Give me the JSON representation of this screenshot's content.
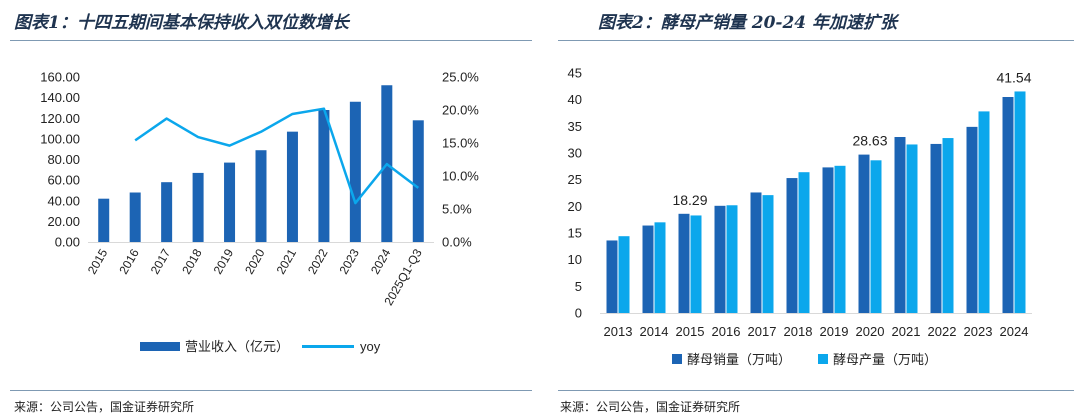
{
  "titles": {
    "left": "图表1：十四五期间基本保持收入双位数增长",
    "right": "图表2：酵母产销量 20-24 年加速扩张"
  },
  "sources": {
    "left": "来源：公司公告，国金证券研究所",
    "right": "来源：公司公告，国金证券研究所"
  },
  "colors": {
    "dark_blue": "#1c64b4",
    "light_blue": "#0ba7ec",
    "title": "#1f3450",
    "rule": "#7f9ab3"
  },
  "chart_data": [
    {
      "type": "bar",
      "categories": [
        "2015",
        "2016",
        "2017",
        "2018",
        "2019",
        "2020",
        "2021",
        "2022",
        "2023",
        "2024",
        "2025Q1-Q3"
      ],
      "series": [
        {
          "name": "营业收入（亿元）",
          "type": "bar",
          "axis": "left",
          "values": [
            42,
            48,
            58,
            67,
            77,
            89,
            107,
            128,
            136,
            152,
            118
          ]
        },
        {
          "name": "yoy",
          "type": "line",
          "axis": "right",
          "values": [
            null,
            15.4,
            18.7,
            15.9,
            14.6,
            16.7,
            19.4,
            20.2,
            5.9,
            11.8,
            8.2
          ]
        }
      ],
      "ylim_left": [
        0,
        160
      ],
      "yticks_left": [
        "0.00",
        "20.00",
        "40.00",
        "60.00",
        "80.00",
        "100.00",
        "120.00",
        "140.00",
        "160.00"
      ],
      "ylim_right": [
        0,
        25
      ],
      "yticks_right": [
        "0.0%",
        "5.0%",
        "10.0%",
        "15.0%",
        "20.0%",
        "25.0%"
      ],
      "grid": false,
      "legend": "bottom"
    },
    {
      "type": "bar",
      "categories": [
        "2013",
        "2014",
        "2015",
        "2016",
        "2017",
        "2018",
        "2019",
        "2020",
        "2021",
        "2022",
        "2023",
        "2024"
      ],
      "series": [
        {
          "name": "酵母销量（万吨）",
          "values": [
            13.6,
            16.4,
            18.6,
            20.1,
            22.6,
            25.3,
            27.3,
            29.7,
            33.0,
            31.7,
            34.9,
            40.5
          ]
        },
        {
          "name": "酵母产量（万吨）",
          "values": [
            14.4,
            17.0,
            18.29,
            20.2,
            22.1,
            26.4,
            27.6,
            28.63,
            31.6,
            32.8,
            37.8,
            41.54
          ]
        }
      ],
      "data_labels": [
        {
          "series": 1,
          "index": 2,
          "text": "18.29"
        },
        {
          "series": 1,
          "index": 7,
          "text": "28.63"
        },
        {
          "series": 1,
          "index": 11,
          "text": "41.54"
        }
      ],
      "ylim": [
        0,
        45
      ],
      "yticks": [
        "0",
        "5",
        "10",
        "15",
        "20",
        "25",
        "30",
        "35",
        "40",
        "45"
      ],
      "grid": false,
      "legend": "bottom"
    }
  ]
}
